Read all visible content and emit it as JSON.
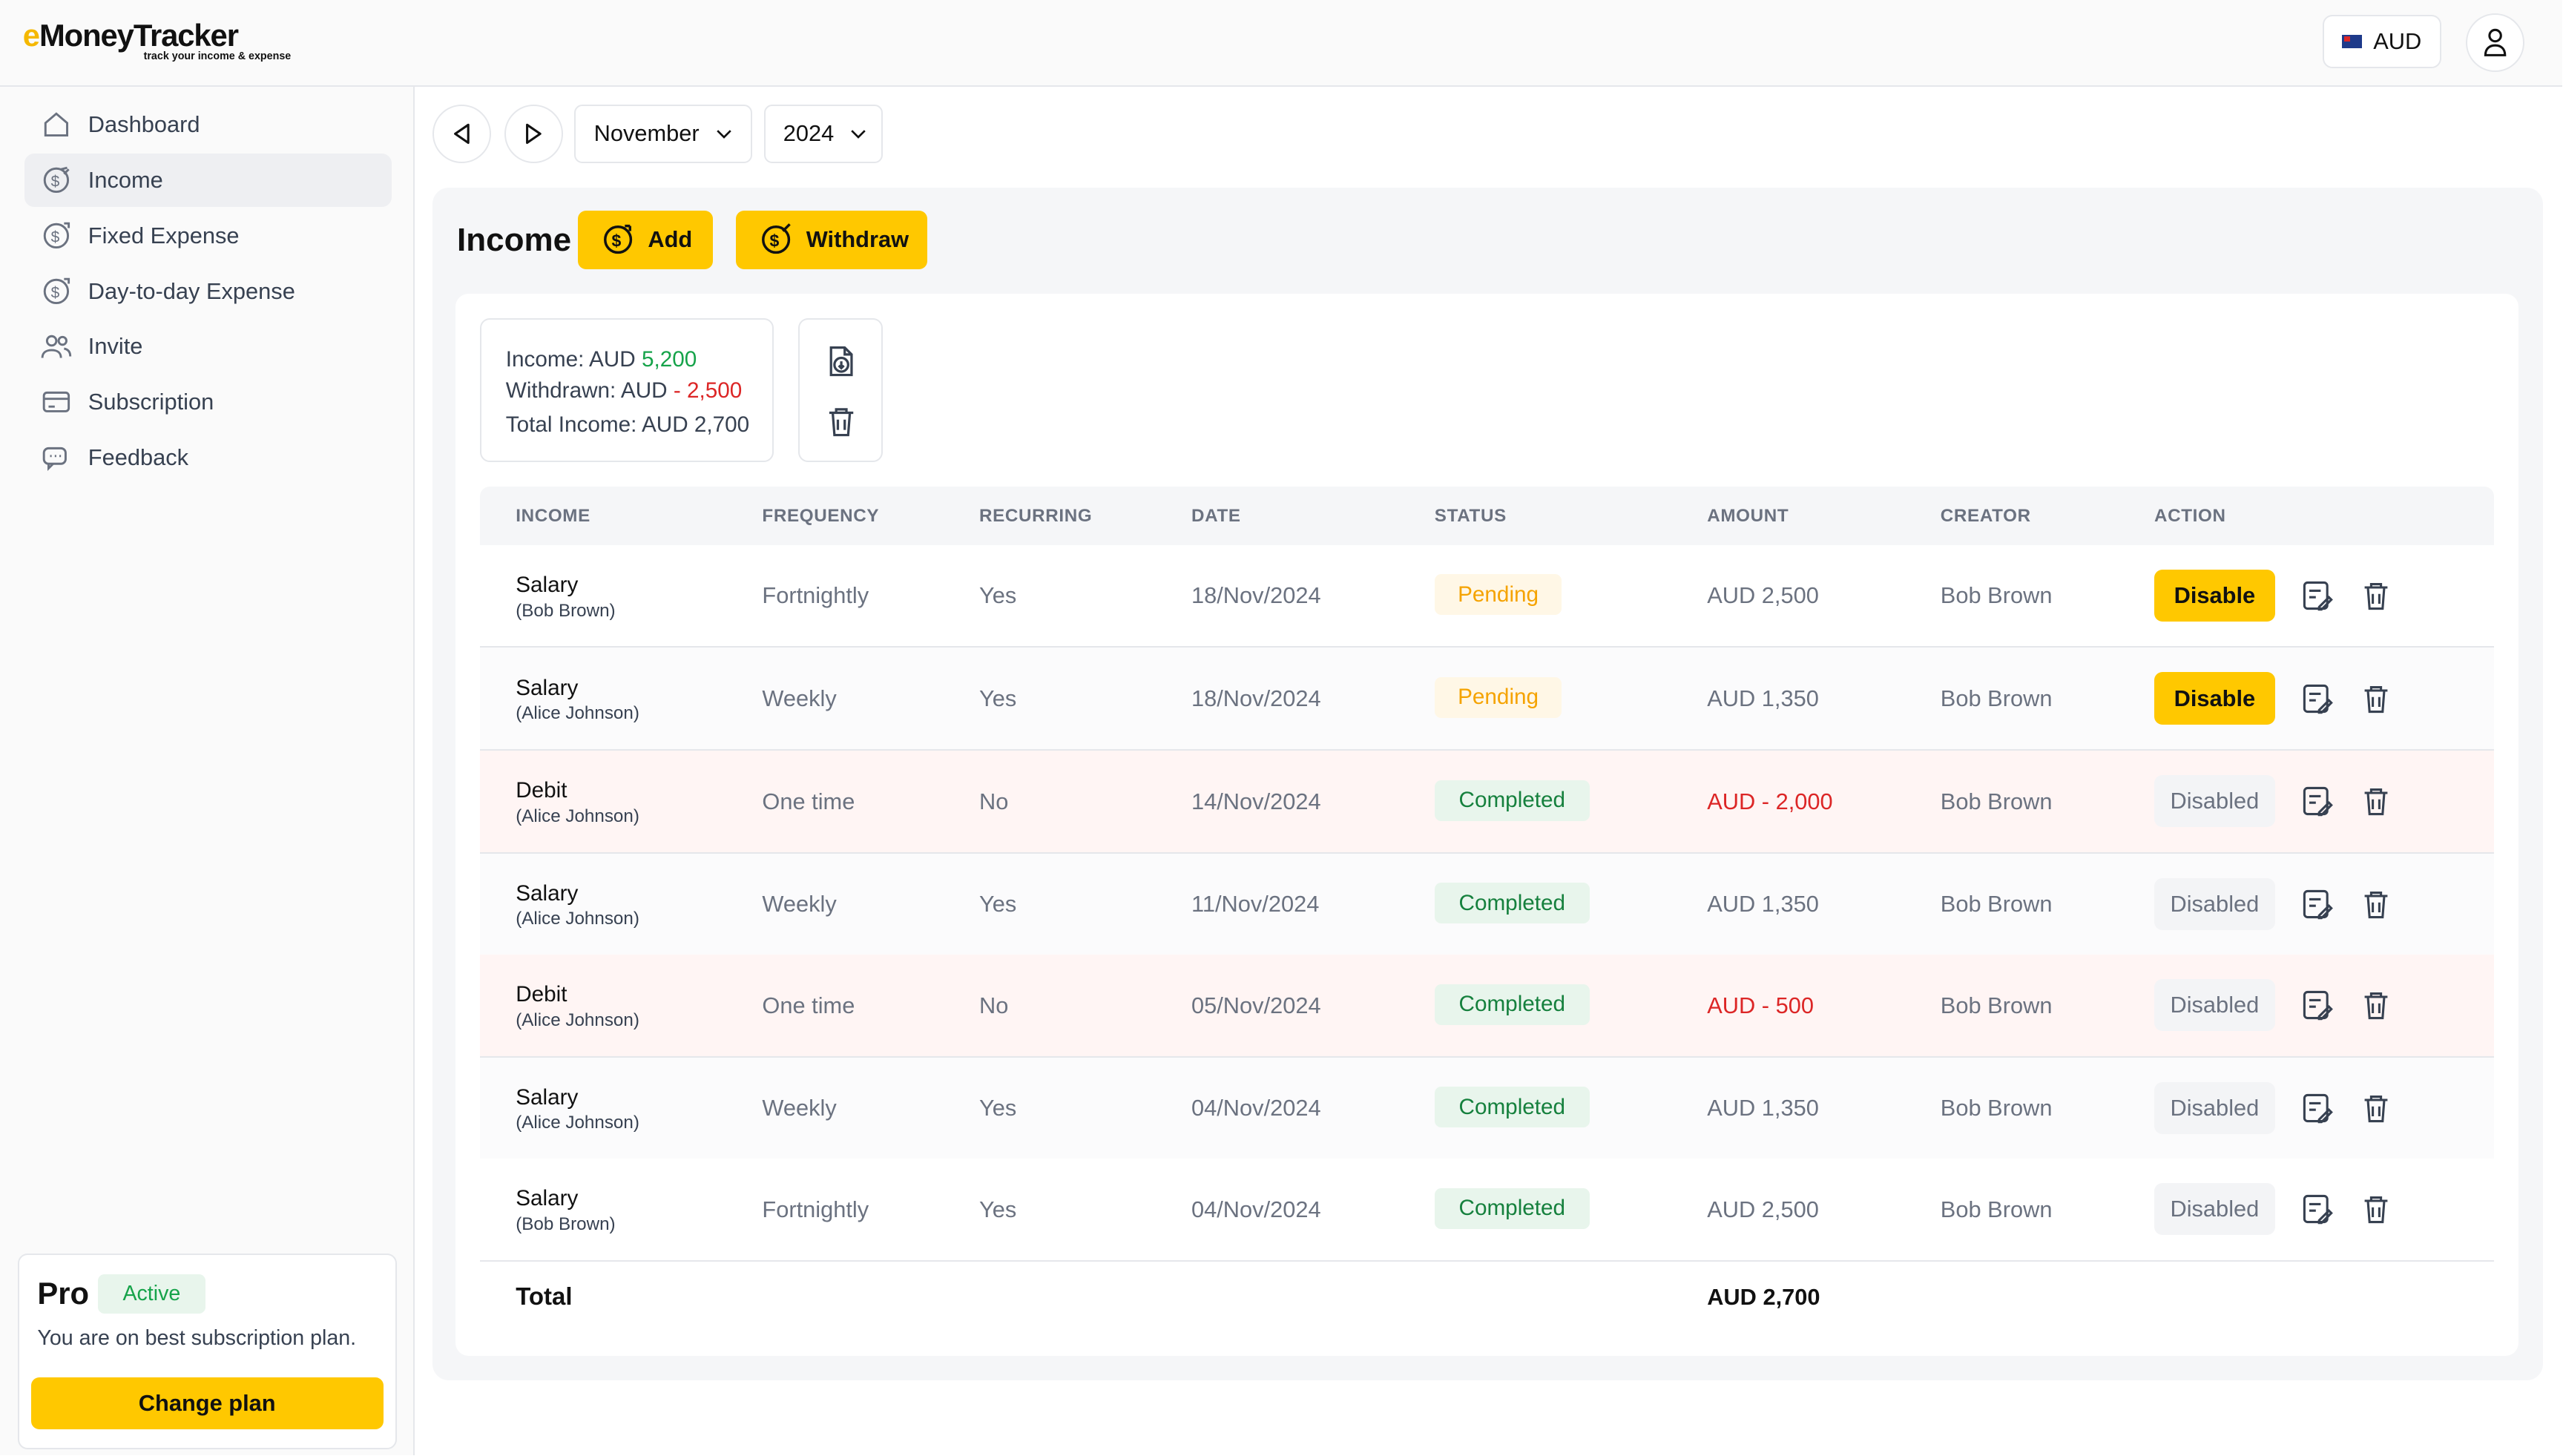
{
  "app": {
    "logo_main_e": "e",
    "logo_main_rest": "MoneyTracker",
    "logo_tagline": "track your income & expense",
    "currency": "AUD"
  },
  "sidebar": {
    "items": [
      {
        "label": "Dashboard",
        "icon": "home-icon"
      },
      {
        "label": "Income",
        "icon": "dollar-in-icon"
      },
      {
        "label": "Fixed Expense",
        "icon": "dollar-out-icon"
      },
      {
        "label": "Day-to-day Expense",
        "icon": "dollar-out-icon"
      },
      {
        "label": "Invite",
        "icon": "users-icon"
      },
      {
        "label": "Subscription",
        "icon": "card-icon"
      },
      {
        "label": "Feedback",
        "icon": "chat-icon"
      }
    ],
    "plan": {
      "name": "Pro",
      "badge": "Active",
      "text": "You are on best subscription plan.",
      "button": "Change plan"
    }
  },
  "toolbar": {
    "month": "November",
    "year": "2024"
  },
  "page": {
    "title": "Income",
    "add_label": "Add",
    "withdraw_label": "Withdraw"
  },
  "summary": {
    "income_prefix": "Income: AUD ",
    "income_value": "5,200",
    "withdrawn_prefix": "Withdrawn: AUD ",
    "withdrawn_value": "- 2,500",
    "total_line": "Total Income: AUD 2,700"
  },
  "table": {
    "headers": [
      "INCOME",
      "FREQUENCY",
      "RECURRING",
      "DATE",
      "STATUS",
      "AMOUNT",
      "CREATOR",
      "ACTION"
    ],
    "rows": [
      {
        "name": "Salary",
        "by": "(Bob Brown)",
        "frequency": "Fortnightly",
        "recurring": "Yes",
        "date": "18/Nov/2024",
        "status": "Pending",
        "amount": "AUD 2,500",
        "creator": "Bob Brown",
        "action": "Disable"
      },
      {
        "name": "Salary",
        "by": "(Alice Johnson)",
        "frequency": "Weekly",
        "recurring": "Yes",
        "date": "18/Nov/2024",
        "status": "Pending",
        "amount": "AUD 1,350",
        "creator": "Bob Brown",
        "action": "Disable"
      },
      {
        "name": "Debit",
        "by": "(Alice Johnson)",
        "frequency": "One time",
        "recurring": "No",
        "date": "14/Nov/2024",
        "status": "Completed",
        "amount": "AUD - 2,000",
        "creator": "Bob Brown",
        "action": "Disabled"
      },
      {
        "name": "Salary",
        "by": "(Alice Johnson)",
        "frequency": "Weekly",
        "recurring": "Yes",
        "date": "11/Nov/2024",
        "status": "Completed",
        "amount": "AUD 1,350",
        "creator": "Bob Brown",
        "action": "Disabled"
      },
      {
        "name": "Debit",
        "by": "(Alice Johnson)",
        "frequency": "One time",
        "recurring": "No",
        "date": "05/Nov/2024",
        "status": "Completed",
        "amount": "AUD - 500",
        "creator": "Bob Brown",
        "action": "Disabled"
      },
      {
        "name": "Salary",
        "by": "(Alice Johnson)",
        "frequency": "Weekly",
        "recurring": "Yes",
        "date": "04/Nov/2024",
        "status": "Completed",
        "amount": "AUD 1,350",
        "creator": "Bob Brown",
        "action": "Disabled"
      },
      {
        "name": "Salary",
        "by": "(Bob Brown)",
        "frequency": "Fortnightly",
        "recurring": "Yes",
        "date": "04/Nov/2024",
        "status": "Completed",
        "amount": "AUD 2,500",
        "creator": "Bob Brown",
        "action": "Disabled"
      }
    ],
    "total_label": "Total",
    "total_value": "AUD 2,700"
  },
  "colors": {
    "accent": "#ffc800",
    "positive": "#16a34a",
    "negative": "#dc2626",
    "pending": "#f5a300"
  }
}
